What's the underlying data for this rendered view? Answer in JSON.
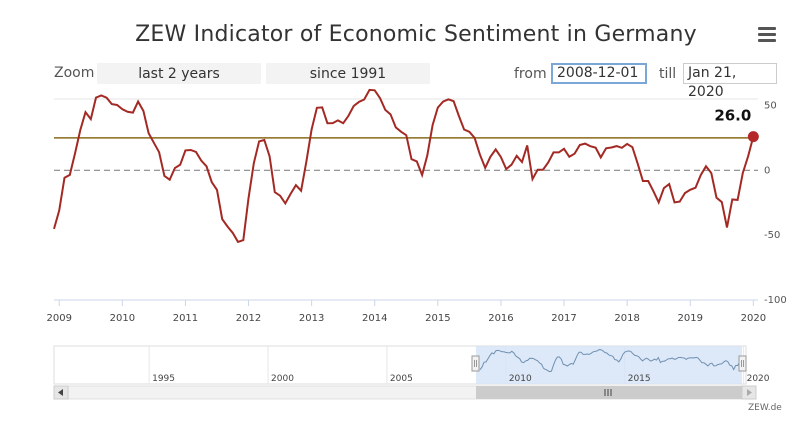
{
  "title": "ZEW Indicator of Economic Sentiment in Germany",
  "menu_icon": "hamburger-menu-icon",
  "zoom": {
    "label": "Zoom",
    "buttons": [
      "last 2 years",
      "since 1991"
    ]
  },
  "range": {
    "from_label": "from",
    "from_value": "2008-12-01",
    "till_label": "till",
    "till_value": "Jan 21, 2020"
  },
  "credit": "ZEW.de",
  "colors": {
    "series": "#a32a24",
    "average_line": "#8a6a1a",
    "zero_line": "#888888",
    "navigator_series": "#6f8fb0",
    "navigator_mask": "#d4e3f7"
  },
  "chart_data": {
    "type": "line",
    "title": "ZEW Indicator of Economic Sentiment in Germany",
    "xlabel": "",
    "ylabel": "",
    "ylim": [
      -100,
      55
    ],
    "y_ticks": [
      50,
      0,
      -50,
      -100
    ],
    "x_ticks": [
      "2009",
      "2010",
      "2011",
      "2012",
      "2013",
      "2014",
      "2015",
      "2016",
      "2017",
      "2018",
      "2019",
      "2020"
    ],
    "grid": false,
    "reference_lines": [
      {
        "type": "average",
        "y": 25
      },
      {
        "type": "zero",
        "y": 0
      }
    ],
    "last_value_label": "26.0",
    "series": [
      {
        "x": [
          "2008-12",
          "2009-01",
          "2009-02",
          "2009-03",
          "2009-04",
          "2009-05",
          "2009-06",
          "2009-07",
          "2009-08",
          "2009-09",
          "2009-10",
          "2009-11",
          "2009-12",
          "2010-01",
          "2010-02",
          "2010-03",
          "2010-04",
          "2010-05",
          "2010-06",
          "2010-07",
          "2010-08",
          "2010-09",
          "2010-10",
          "2010-11",
          "2010-12",
          "2011-01",
          "2011-02",
          "2011-03",
          "2011-04",
          "2011-05",
          "2011-06",
          "2011-07",
          "2011-08",
          "2011-09",
          "2011-10",
          "2011-11",
          "2011-12",
          "2012-01",
          "2012-02",
          "2012-03",
          "2012-04",
          "2012-05",
          "2012-06",
          "2012-07",
          "2012-08",
          "2012-09",
          "2012-10",
          "2012-11",
          "2012-12",
          "2013-01",
          "2013-02",
          "2013-03",
          "2013-04",
          "2013-05",
          "2013-06",
          "2013-07",
          "2013-08",
          "2013-09",
          "2013-10",
          "2013-11",
          "2013-12",
          "2014-01",
          "2014-02",
          "2014-03",
          "2014-04",
          "2014-05",
          "2014-06",
          "2014-07",
          "2014-08",
          "2014-09",
          "2014-10",
          "2014-11",
          "2014-12",
          "2015-01",
          "2015-02",
          "2015-03",
          "2015-04",
          "2015-05",
          "2015-06",
          "2015-07",
          "2015-08",
          "2015-09",
          "2015-10",
          "2015-11",
          "2015-12",
          "2016-01",
          "2016-02",
          "2016-03",
          "2016-04",
          "2016-05",
          "2016-06",
          "2016-07",
          "2016-08",
          "2016-09",
          "2016-10",
          "2016-11",
          "2016-12",
          "2017-01",
          "2017-02",
          "2017-03",
          "2017-04",
          "2017-05",
          "2017-06",
          "2017-07",
          "2017-08",
          "2017-09",
          "2017-10",
          "2017-11",
          "2017-12",
          "2018-01",
          "2018-02",
          "2018-03",
          "2018-04",
          "2018-05",
          "2018-06",
          "2018-07",
          "2018-08",
          "2018-09",
          "2018-10",
          "2018-11",
          "2018-12",
          "2019-01",
          "2019-02",
          "2019-03",
          "2019-04",
          "2019-05",
          "2019-06",
          "2019-07",
          "2019-08",
          "2019-09",
          "2019-10",
          "2019-11",
          "2019-12",
          "2020-01"
        ],
        "values": [
          -45.2,
          -31.0,
          -5.8,
          -3.5,
          13.0,
          31.1,
          44.8,
          39.5,
          56.1,
          57.7,
          56.0,
          51.1,
          50.4,
          47.2,
          45.1,
          44.5,
          53.0,
          45.8,
          28.7,
          21.2,
          14.0,
          -4.3,
          -7.2,
          1.8,
          4.3,
          15.4,
          15.7,
          14.1,
          7.6,
          3.1,
          -9.0,
          -15.1,
          -37.6,
          -43.3,
          -48.3,
          -55.2,
          -53.8,
          -21.6,
          5.4,
          22.3,
          23.4,
          10.8,
          -16.9,
          -19.6,
          -25.5,
          -18.2,
          -11.5,
          -15.7,
          6.9,
          31.5,
          48.2,
          48.5,
          36.3,
          36.4,
          38.5,
          36.3,
          42.0,
          49.6,
          52.8,
          54.6,
          62.0,
          61.7,
          55.7,
          46.6,
          43.2,
          33.1,
          29.8,
          27.1,
          8.6,
          6.9,
          -3.6,
          11.5,
          34.9,
          48.4,
          53.0,
          54.8,
          53.3,
          41.9,
          31.5,
          29.7,
          25.0,
          12.1,
          1.9,
          10.4,
          16.1,
          10.2,
          1.0,
          4.3,
          11.2,
          6.4,
          19.2,
          -6.8,
          0.5,
          0.5,
          6.2,
          13.8,
          13.8,
          16.6,
          10.4,
          12.8,
          19.5,
          20.6,
          18.6,
          17.5,
          10.0,
          17.0,
          17.6,
          18.7,
          17.4,
          20.4,
          17.8,
          5.1,
          -8.2,
          -8.2,
          -16.1,
          -24.7,
          -13.7,
          -10.6,
          -24.7,
          -24.1,
          -17.5,
          -15.0,
          -13.4,
          -3.6,
          3.1,
          -2.1,
          -21.1,
          -24.5,
          -44.1,
          -22.5,
          -22.8,
          -2.1,
          10.7,
          26.0
        ]
      }
    ],
    "navigator": {
      "x_ticks": [
        "1995",
        "2000",
        "2005",
        "2010",
        "2015",
        "2020"
      ],
      "selection": [
        "2008-12-01",
        "2020-01-21"
      ]
    }
  }
}
